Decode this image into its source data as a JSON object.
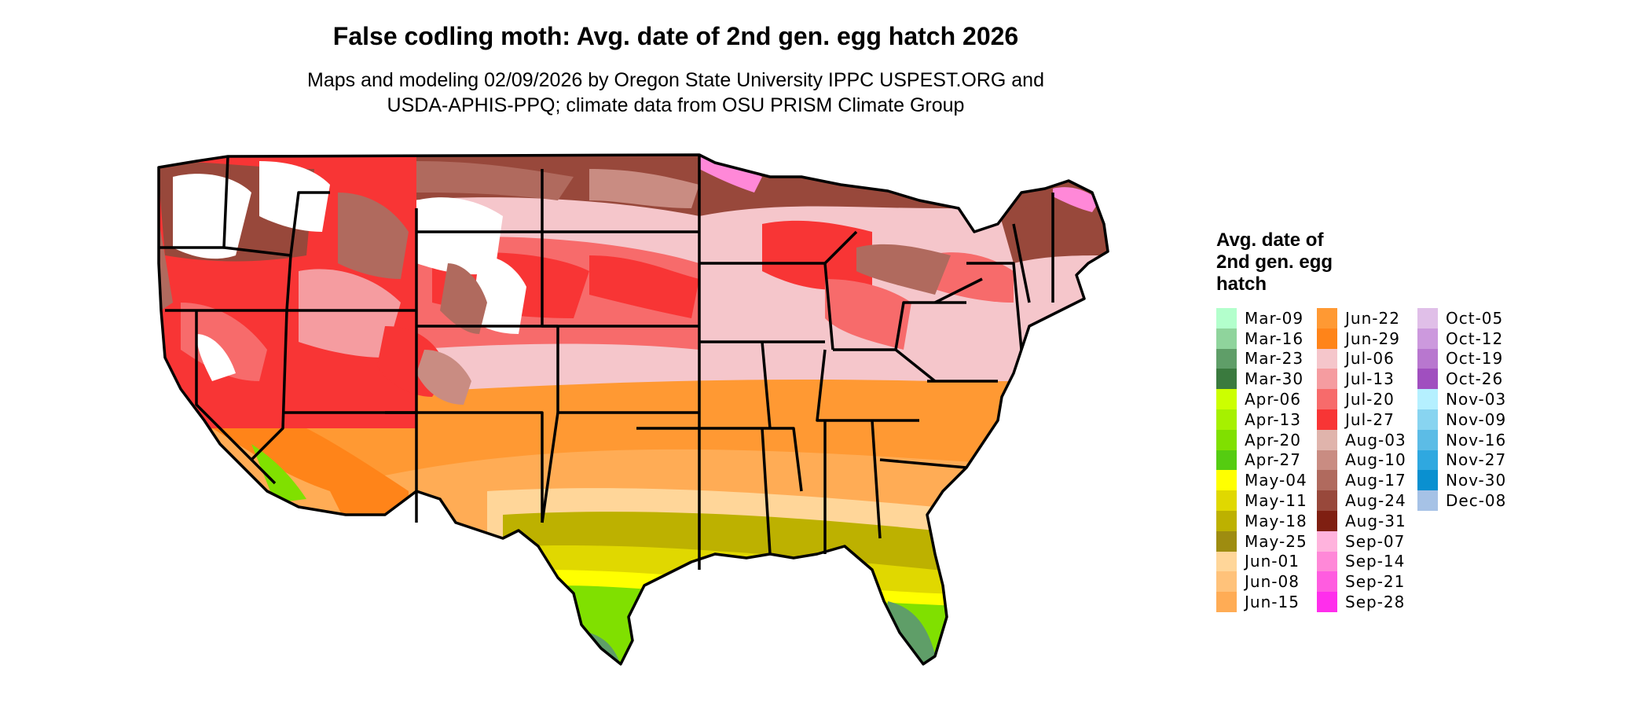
{
  "header": {
    "title": "False codling moth: Avg. date of 2nd gen. egg hatch 2026",
    "subtitle_line1": "Maps and modeling 02/09/2026 by Oregon State University IPPC USPEST.ORG and",
    "subtitle_line2": "USDA-APHIS-PPQ; climate data from OSU PRISM Climate Group"
  },
  "map": {
    "region": "Continental United States",
    "boundary_color": "#000000"
  },
  "legend": {
    "title_line1": "Avg. date of",
    "title_line2": "2nd gen. egg",
    "title_line3": "hatch",
    "columns": [
      [
        {
          "label": "Mar-09",
          "color": "#b3ffcc"
        },
        {
          "label": "Mar-16",
          "color": "#8fd49c"
        },
        {
          "label": "Mar-23",
          "color": "#5f9e68"
        },
        {
          "label": "Mar-30",
          "color": "#3a7a3e"
        },
        {
          "label": "Apr-06",
          "color": "#ccff00"
        },
        {
          "label": "Apr-13",
          "color": "#a6f000"
        },
        {
          "label": "Apr-20",
          "color": "#80e000"
        },
        {
          "label": "Apr-27",
          "color": "#55cc11"
        },
        {
          "label": "May-04",
          "color": "#ffff00"
        },
        {
          "label": "May-11",
          "color": "#e0d800"
        },
        {
          "label": "May-18",
          "color": "#bdb100"
        },
        {
          "label": "May-25",
          "color": "#9e8c10"
        },
        {
          "label": "Jun-01",
          "color": "#ffd699"
        },
        {
          "label": "Jun-08",
          "color": "#ffc27a"
        },
        {
          "label": "Jun-15",
          "color": "#ffac55"
        }
      ],
      [
        {
          "label": "Jun-22",
          "color": "#ff9933"
        },
        {
          "label": "Jun-29",
          "color": "#ff8419"
        },
        {
          "label": "Jul-06",
          "color": "#f5c6cb"
        },
        {
          "label": "Jul-13",
          "color": "#f59ca0"
        },
        {
          "label": "Jul-20",
          "color": "#f76b6b"
        },
        {
          "label": "Jul-27",
          "color": "#f83535"
        },
        {
          "label": "Aug-03",
          "color": "#e0b4ac"
        },
        {
          "label": "Aug-10",
          "color": "#c98c82"
        },
        {
          "label": "Aug-17",
          "color": "#b06a5e"
        },
        {
          "label": "Aug-24",
          "color": "#98483b"
        },
        {
          "label": "Aug-31",
          "color": "#7f1f12"
        },
        {
          "label": "Sep-07",
          "color": "#ffb3dd"
        },
        {
          "label": "Sep-14",
          "color": "#ff88d8"
        },
        {
          "label": "Sep-21",
          "color": "#ff5ce0"
        },
        {
          "label": "Sep-28",
          "color": "#ff2eec"
        }
      ],
      [
        {
          "label": "Oct-05",
          "color": "#e0bfe8"
        },
        {
          "label": "Oct-12",
          "color": "#cc99dd"
        },
        {
          "label": "Oct-19",
          "color": "#b877cf"
        },
        {
          "label": "Oct-26",
          "color": "#a04fbf"
        },
        {
          "label": "Nov-03",
          "color": "#b5f0ff"
        },
        {
          "label": "Nov-09",
          "color": "#88d4f0"
        },
        {
          "label": "Nov-16",
          "color": "#5cbce6"
        },
        {
          "label": "Nov-27",
          "color": "#2fa8e0"
        },
        {
          "label": "Nov-30",
          "color": "#0a90d0"
        },
        {
          "label": "Dec-08",
          "color": "#a6c2e6"
        }
      ]
    ]
  }
}
